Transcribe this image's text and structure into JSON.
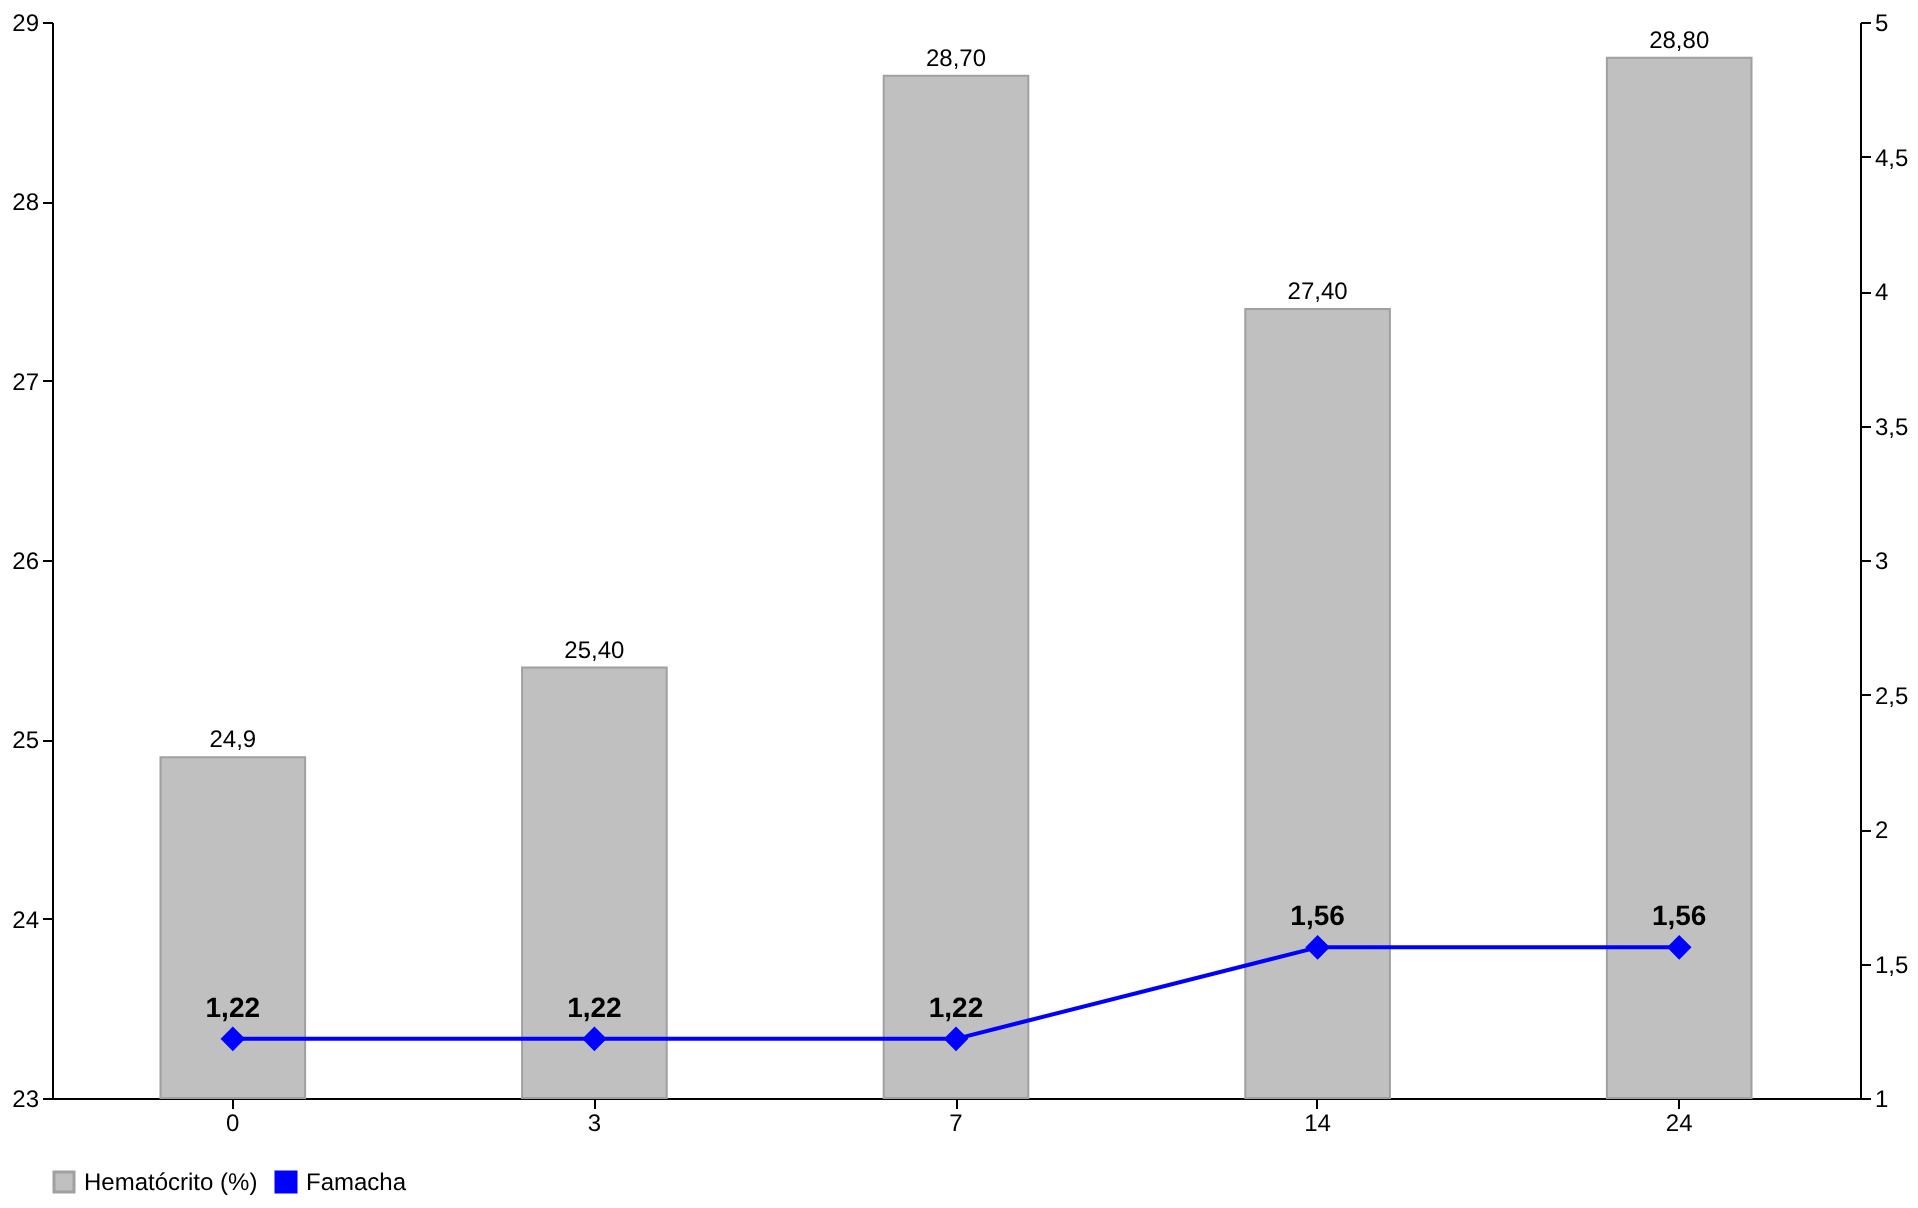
{
  "chart_data": {
    "type": "bar",
    "categories": [
      "0",
      "3",
      "7",
      "14",
      "24"
    ],
    "series": [
      {
        "name": "Hematócrito (%)",
        "color": "#c0c0c0",
        "values": [
          24.9,
          25.4,
          28.7,
          27.4,
          28.8
        ],
        "value_labels": [
          "24,9",
          "25,40",
          "28,70",
          "27,40",
          "28,80"
        ]
      },
      {
        "name": "Famacha",
        "type": "line",
        "axis": "y2",
        "color": "#0000ff",
        "marker": "diamond",
        "values": [
          1.22,
          1.22,
          1.22,
          1.56,
          1.56
        ],
        "value_labels": [
          "1,22",
          "1,22",
          "1,22",
          "1,56",
          "1,56"
        ]
      }
    ],
    "ylim": [
      23,
      29
    ],
    "yticks": [
      23,
      24,
      25,
      26,
      27,
      28,
      29
    ],
    "y2lim": [
      1,
      5
    ],
    "y2ticks": [
      1,
      {
        "value": 1.5,
        "label": "1,5"
      },
      2,
      {
        "value": 2.5,
        "label": "2,5"
      },
      3,
      {
        "value": 3.5,
        "label": "3,5"
      },
      4,
      {
        "value": 4.5,
        "label": "4,5"
      },
      5
    ],
    "grid": false,
    "legend": "bottom"
  }
}
